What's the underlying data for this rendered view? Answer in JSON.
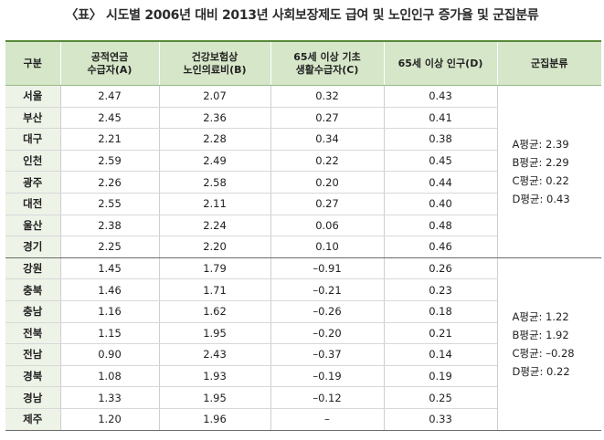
{
  "title": "〈표〉 시도별 2006년 대비 2013년 사회보장제도 급여 및 노인인구 증가율 및 군집분류",
  "headers": [
    "구분",
    "공적연금\n수급자(A)",
    "건강보험상\n노인의료비(B)",
    "65세 이상 기초\n생활수급자(C)",
    "65세 이상 인구(D)",
    "군집분류"
  ],
  "group1": {
    "rows": [
      {
        "region": "서울",
        "a": "2.47",
        "b": "2.07",
        "c": "0.32",
        "d": "0.43"
      },
      {
        "region": "부산",
        "a": "2.45",
        "b": "2.36",
        "c": "0.27",
        "d": "0.41"
      },
      {
        "region": "대구",
        "a": "2.21",
        "b": "2.28",
        "c": "0.34",
        "d": "0.38"
      },
      {
        "region": "인천",
        "a": "2.59",
        "b": "2.49",
        "c": "0.22",
        "d": "0.45"
      },
      {
        "region": "광주",
        "a": "2.26",
        "b": "2.58",
        "c": "0.20",
        "d": "0.44"
      },
      {
        "region": "대전",
        "a": "2.55",
        "b": "2.11",
        "c": "0.27",
        "d": "0.40"
      },
      {
        "region": "울산",
        "a": "2.38",
        "b": "2.24",
        "c": "0.06",
        "d": "0.48"
      },
      {
        "region": "경기",
        "a": "2.25",
        "b": "2.20",
        "c": "0.10",
        "d": "0.46"
      }
    ],
    "cluster": [
      "A평균: 2.39",
      "B평균: 2.29",
      "C평균: 0.22",
      "D평균: 0.43"
    ]
  },
  "group2": {
    "rows": [
      {
        "region": "강원",
        "a": "1.45",
        "b": "1.79",
        "c": "–0.91",
        "d": "0.26"
      },
      {
        "region": "충북",
        "a": "1.46",
        "b": "1.71",
        "c": "–0.21",
        "d": "0.23"
      },
      {
        "region": "충남",
        "a": "1.16",
        "b": "1.62",
        "c": "–0.26",
        "d": "0.18"
      },
      {
        "region": "전북",
        "a": "1.15",
        "b": "1.95",
        "c": "–0.20",
        "d": "0.21"
      },
      {
        "region": "전남",
        "a": "0.90",
        "b": "2.43",
        "c": "–0.37",
        "d": "0.14"
      },
      {
        "region": "경북",
        "a": "1.08",
        "b": "1.93",
        "c": "–0.19",
        "d": "0.19"
      },
      {
        "region": "경남",
        "a": "1.33",
        "b": "1.95",
        "c": "–0.12",
        "d": "0.25"
      },
      {
        "region": "제주",
        "a": "1.20",
        "b": "1.96",
        "c": "–",
        "d": "0.33"
      }
    ],
    "cluster": [
      "A평균: 1.22",
      "B평균: 1.92",
      "C평균: –0.28",
      "D평균: 0.22"
    ]
  }
}
